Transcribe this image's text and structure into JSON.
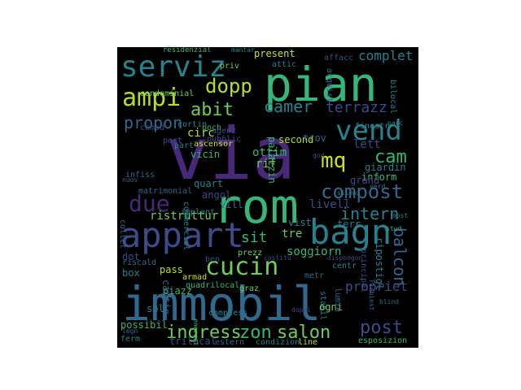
{
  "word_cloud": {
    "background": "#000000",
    "palette": {
      "purple": "#482878",
      "indigo": "#3e4a89",
      "blue": "#31688e",
      "teal": "#26828e",
      "green": "#35b779",
      "lime": "#6ece58",
      "yellow": "#b5de2b",
      "light": "#c8e020"
    },
    "words": [
      {
        "text": "via",
        "color": "#482878"
      },
      {
        "text": "immobil",
        "color": "#31688e"
      },
      {
        "text": "pian",
        "color": "#35b779"
      },
      {
        "text": "rom",
        "color": "#35b779"
      },
      {
        "text": "appart",
        "color": "#3e4a89"
      },
      {
        "text": "serviz",
        "color": "#26828e"
      },
      {
        "text": "bagn",
        "color": "#26828e"
      },
      {
        "text": "ampi",
        "color": "#b5de2b"
      },
      {
        "text": "vend",
        "color": "#26828e"
      },
      {
        "text": "cucin",
        "color": "#6ece58"
      },
      {
        "text": "due",
        "color": "#482878"
      },
      {
        "text": "mq",
        "color": "#c8e020"
      },
      {
        "text": "dopp",
        "color": "#b5de2b"
      },
      {
        "text": "compost",
        "color": "#31688e"
      },
      {
        "text": "intern",
        "color": "#26828e"
      },
      {
        "text": "ingress",
        "color": "#6ece58"
      },
      {
        "text": "zon",
        "color": "#35b779"
      },
      {
        "text": "salon",
        "color": "#6ece58"
      },
      {
        "text": "post",
        "color": "#3e4a89"
      },
      {
        "text": "cam",
        "color": "#35b779"
      },
      {
        "text": "abit",
        "color": "#6ece58"
      },
      {
        "text": "propon",
        "color": "#31688e"
      },
      {
        "text": "camer",
        "color": "#26828e"
      },
      {
        "text": "terrazz",
        "color": "#3e4a89"
      },
      {
        "text": "balcon",
        "color": "#31688e"
      },
      {
        "text": "complet",
        "color": "#26828e"
      },
      {
        "text": "present",
        "color": "#c8e020"
      },
      {
        "text": "residenzial",
        "color": "#35b779"
      },
      {
        "text": "condominial",
        "color": "#6ece58"
      },
      {
        "text": "attic",
        "color": "#26828e"
      },
      {
        "text": "affacc",
        "color": "#3e4a89"
      },
      {
        "text": "acquist",
        "color": "#31688e"
      },
      {
        "text": "bilocal",
        "color": "#26828e"
      },
      {
        "text": "lett",
        "color": "#3e4a89"
      },
      {
        "text": "giardin",
        "color": "#26828e"
      },
      {
        "text": "inform",
        "color": "#35b779"
      },
      {
        "text": "grand",
        "color": "#3e4a89"
      },
      {
        "text": "circ",
        "color": "#b5de2b"
      },
      {
        "text": "rif",
        "color": "#6ece58"
      },
      {
        "text": "ottim",
        "color": "#35b779"
      },
      {
        "text": "palazzin",
        "color": "#35b779"
      },
      {
        "text": "second",
        "color": "#b5de2b"
      },
      {
        "text": "ascensor",
        "color": "#c8e020"
      },
      {
        "text": "vicin",
        "color": "#35b779"
      },
      {
        "text": "quart",
        "color": "#26828e"
      },
      {
        "text": "angol",
        "color": "#3e4a89"
      },
      {
        "text": "vill",
        "color": "#31688e"
      },
      {
        "text": "livell",
        "color": "#3e4a89"
      },
      {
        "text": "ristruttur",
        "color": "#6ece58"
      },
      {
        "text": "sit",
        "color": "#35b779"
      },
      {
        "text": "vist",
        "color": "#26828e"
      },
      {
        "text": "tre",
        "color": "#6ece58"
      },
      {
        "text": "soggiorn",
        "color": "#35b779"
      },
      {
        "text": "terr",
        "color": "#26828e"
      },
      {
        "text": "stud",
        "color": "#35b779"
      },
      {
        "text": "ripostigl",
        "color": "#26828e"
      },
      {
        "text": "principal",
        "color": "#3e4a89"
      },
      {
        "text": "propriet",
        "color": "#3e4a89"
      },
      {
        "text": "stabil",
        "color": "#26828e"
      },
      {
        "text": "metr",
        "color": "#31688e"
      },
      {
        "text": "centr",
        "color": "#26828e"
      },
      {
        "text": "ogni",
        "color": "#6ece58"
      },
      {
        "text": "lumin",
        "color": "#31688e"
      },
      {
        "text": "pass",
        "color": "#b5de2b"
      },
      {
        "text": "armad",
        "color": "#c8e020"
      },
      {
        "text": "piazz",
        "color": "#35b779"
      },
      {
        "text": "cantin",
        "color": "#31688e"
      },
      {
        "text": "box",
        "color": "#26828e"
      },
      {
        "text": "dot",
        "color": "#3e4a89"
      },
      {
        "text": "riscald",
        "color": "#31688e"
      },
      {
        "text": "sol",
        "color": "#26828e"
      },
      {
        "text": "possibil",
        "color": "#35b779"
      },
      {
        "text": "trilocal",
        "color": "#3e4a89"
      },
      {
        "text": "ferm",
        "color": "#26828e"
      },
      {
        "text": "legn",
        "color": "#31688e"
      },
      {
        "text": "estern",
        "color": "#31688e"
      },
      {
        "text": "condizion",
        "color": "#26828e"
      },
      {
        "text": "line",
        "color": "#c8e020"
      },
      {
        "text": "esposizion",
        "color": "#35b779"
      },
      {
        "text": "quadrilocal",
        "color": "#35b779"
      },
      {
        "text": "compless",
        "color": "#26828e"
      },
      {
        "text": "commercial",
        "color": "#26828e"
      },
      {
        "text": "implant",
        "color": "#26828e"
      },
      {
        "text": "matrimonial",
        "color": "#31688e"
      },
      {
        "text": "infiss",
        "color": "#31688e"
      },
      {
        "text": "agenz",
        "color": "#3e4a89"
      },
      {
        "text": "pubblic",
        "color": "#3e4a89"
      },
      {
        "text": "poch",
        "color": "#35b779"
      },
      {
        "text": "cortin",
        "color": "#26828e"
      },
      {
        "text": "port",
        "color": "#3e4a89"
      },
      {
        "text": "part",
        "color": "#26828e"
      },
      {
        "text": "comod",
        "color": "#3e4a89"
      },
      {
        "text": "mantar",
        "color": "#26828e"
      },
      {
        "text": "priv",
        "color": "#6ece58"
      },
      {
        "text": "trov",
        "color": "#31688e"
      },
      {
        "text": "finestr",
        "color": "#26828e"
      },
      {
        "text": "silenz",
        "color": "#26828e"
      },
      {
        "text": "collet",
        "color": "#31688e"
      },
      {
        "text": "nuov",
        "color": "#31688e"
      },
      {
        "text": "prezz",
        "color": "#6ece58"
      },
      {
        "text": "costitu",
        "color": "#3e4a89"
      },
      {
        "text": "blind",
        "color": "#31688e"
      },
      {
        "text": "parc",
        "color": "#26828e"
      },
      {
        "text": "god",
        "color": "#3e4a89"
      },
      {
        "text": "verd",
        "color": "#26828e"
      },
      {
        "text": "ben",
        "color": "#3e4a89"
      },
      {
        "text": "graz",
        "color": "#6ece58"
      },
      {
        "text": "dispongon",
        "color": "#3e4a89"
      },
      {
        "text": "doppi",
        "color": "#3e4a89"
      },
      {
        "text": "nost",
        "color": "#26828e"
      },
      {
        "text": "richiest",
        "color": "#31688e"
      },
      {
        "text": "energet",
        "color": "#35b779"
      }
    ]
  }
}
